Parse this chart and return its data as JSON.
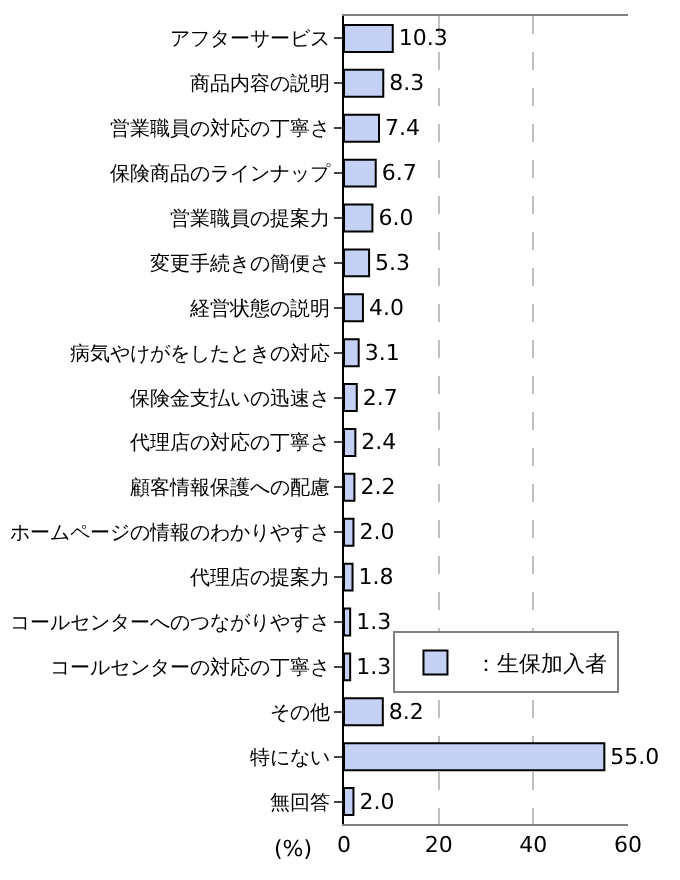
{
  "chart_data": {
    "type": "bar",
    "orientation": "horizontal",
    "xlabel": "(%)",
    "categories": [
      "アフターサービス",
      "商品内容の説明",
      "営業職員の対応の丁寧さ",
      "保険商品のラインナップ",
      "営業職員の提案力",
      "変更手続きの簡便さ",
      "経営状態の説明",
      "病気やけがをしたときの対応",
      "保険金支払いの迅速さ",
      "代理店の対応の丁寧さ",
      "顧客情報保護への配慮",
      "ホームページの情報のわかりやすさ",
      "代理店の提案力",
      "コールセンターへのつながりやすさ",
      "コールセンターの対応の丁寧さ",
      "その他",
      "特にない",
      "無回答"
    ],
    "series": [
      {
        "name": "：生保加入者",
        "color": "#c5d0f5",
        "values": [
          10.3,
          8.3,
          7.4,
          6.7,
          6.0,
          5.3,
          4.0,
          3.1,
          2.7,
          2.4,
          2.2,
          2.0,
          1.8,
          1.3,
          1.3,
          8.2,
          55.0,
          2.0
        ],
        "value_labels": [
          "10.3",
          "8.3",
          "7.4",
          "6.7",
          "6.0",
          "5.3",
          "4.0",
          "3.1",
          "2.7",
          "2.4",
          "2.2",
          "2.0",
          "1.8",
          "1.3",
          "1.3",
          "8.2",
          "55.0",
          "2.0"
        ]
      }
    ],
    "xlim": [
      0,
      60
    ],
    "xticks": [
      0,
      20,
      40,
      60
    ],
    "grid": "x",
    "legend": "right"
  }
}
